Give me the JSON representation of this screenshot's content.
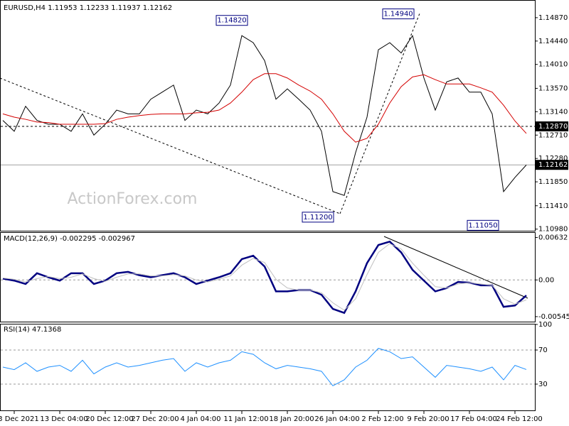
{
  "chart_data": [
    {
      "type": "line",
      "title": "EURUSD,H4  1.11953 1.12233 1.11937 1.12162",
      "watermark": "ActionForex.com",
      "categories": [
        null,
        "3 Dec 2021",
        null,
        null,
        null,
        "13 Dec 04:00",
        null,
        null,
        null,
        "20 Dec 12:00",
        null,
        null,
        null,
        "27 Dec 20:00",
        null,
        null,
        null,
        "4 Jan 04:00",
        null,
        null,
        null,
        "11 Jan 12:00",
        null,
        null,
        null,
        "18 Jan 20:00",
        null,
        null,
        null,
        "26 Jan 04:00",
        null,
        null,
        null,
        "2 Feb 12:00",
        null,
        null,
        null,
        "9 Feb 20:00",
        null,
        null,
        null,
        "17 Feb 04:00",
        null,
        null,
        null,
        "24 Feb 12:00",
        null
      ],
      "series": [
        {
          "color": "#000000",
          "values": [
            1.1298,
            1.1278,
            1.1324,
            1.1298,
            1.1291,
            1.1291,
            1.1278,
            1.131,
            1.1271,
            1.1291,
            1.1317,
            1.131,
            1.131,
            1.1337,
            1.135,
            1.1363,
            1.1298,
            1.1317,
            1.131,
            1.133,
            1.1363,
            1.1454,
            1.1441,
            1.1408,
            1.1337,
            1.1356,
            1.1337,
            1.1317,
            1.1278,
            1.1167,
            1.116,
            1.1239,
            1.1304,
            1.1428,
            1.1441,
            1.1422,
            1.1454,
            1.1376,
            1.1317,
            1.1369,
            1.1376,
            1.135,
            1.135,
            1.131,
            1.1167,
            1.1193,
            1.1216
          ]
        },
        {
          "color": "#d40000",
          "values": [
            1.131,
            1.1304,
            1.13,
            1.1295,
            1.1294,
            1.1291,
            1.1291,
            1.1291,
            1.1291,
            1.1292,
            1.13,
            1.1304,
            1.1307,
            1.1309,
            1.131,
            1.131,
            1.131,
            1.1312,
            1.1313,
            1.1317,
            1.133,
            1.135,
            1.1373,
            1.1384,
            1.1384,
            1.1376,
            1.1363,
            1.1352,
            1.1337,
            1.131,
            1.1278,
            1.1258,
            1.1265,
            1.1291,
            1.133,
            1.136,
            1.1378,
            1.1382,
            1.1373,
            1.1365,
            1.1365,
            1.1365,
            1.1358,
            1.135,
            1.1326,
            1.1297,
            1.1274
          ]
        }
      ],
      "ylim": [
        1.1095,
        1.1513
      ],
      "yticks": [
        {
          "value": 1.1487,
          "label": "1.14870"
        },
        {
          "value": 1.1444,
          "label": "1.14440"
        },
        {
          "value": 1.1401,
          "label": "1.14010"
        },
        {
          "value": 1.1357,
          "label": "1.13570"
        },
        {
          "value": 1.1314,
          "label": "1.13140"
        },
        {
          "value": 1.1271,
          "label": "1.12710"
        },
        {
          "value": 1.1228,
          "label": "1.12280"
        },
        {
          "value": 1.1185,
          "label": "1.11850"
        },
        {
          "value": 1.1141,
          "label": "1.11410"
        },
        {
          "value": 1.1098,
          "label": "1.10980"
        }
      ],
      "grid": false,
      "level": {
        "value": 1.1287,
        "label": "1.12870"
      },
      "current_price": 1.12162,
      "annotations": [
        {
          "value": 1.1482,
          "label": "1.14820"
        },
        {
          "value": 1.1494,
          "label": "1.14940"
        },
        {
          "value": 1.112,
          "label": "1.11200"
        },
        {
          "value": 1.1105,
          "label": "1.11050"
        }
      ]
    },
    {
      "type": "line",
      "title": "MACD(12,26,9) -0.002295 -0.002967",
      "series": [
        {
          "color": "#000080",
          "values": [
            0.0002,
            -0.0001,
            -0.0006,
            0.001,
            0.0004,
            -0.0001,
            0.001,
            0.001,
            -0.0006,
            -0.0001,
            0.001,
            0.0012,
            0.0007,
            0.0004,
            0.0007,
            0.001,
            0.0004,
            -0.0006,
            -0.0001,
            0.0004,
            0.001,
            0.0031,
            0.0036,
            0.002,
            -0.0017,
            -0.0017,
            -0.0015,
            -0.0015,
            -0.0022,
            -0.0043,
            -0.0049,
            -0.0017,
            0.0025,
            0.0052,
            0.0057,
            0.0041,
            0.0015,
            -0.0001,
            -0.0017,
            -0.0012,
            -0.0003,
            -0.0004,
            -0.0008,
            -0.0008,
            -0.004,
            -0.0038,
            -0.002295
          ]
        },
        {
          "color": "#c0c0c0",
          "values": [
            0.0003,
            0.0001,
            -0.0003,
            0.0002,
            0.0005,
            0.0002,
            0.0004,
            0.0009,
            0.0002,
            -0.0002,
            0.0004,
            0.0009,
            0.0009,
            0.0006,
            0.0006,
            0.0008,
            0.0006,
            0.0,
            -0.0003,
            0.0001,
            0.0006,
            0.0022,
            0.0032,
            0.0026,
            0.0001,
            -0.0012,
            -0.0015,
            -0.0015,
            -0.0019,
            -0.0034,
            -0.0045,
            -0.0028,
            0.0008,
            0.0041,
            0.0054,
            0.0046,
            0.0025,
            0.0007,
            -0.001,
            -0.0012,
            -0.0006,
            -0.0004,
            -0.0006,
            -0.0008,
            -0.0028,
            -0.0036,
            -0.002967
          ]
        }
      ],
      "ylim": [
        -0.0062,
        0.007
      ],
      "yticks": [
        0.00632,
        {
          "value": 0,
          "label": "0.00"
        },
        -0.005455
      ],
      "grid": true
    },
    {
      "type": "line",
      "title": "RSI(14) 47.1368",
      "series": [
        {
          "color": "#1e90ff",
          "values": [
            50,
            47,
            55,
            45,
            50,
            52,
            45,
            58,
            42,
            50,
            55,
            50,
            52,
            55,
            58,
            60,
            45,
            55,
            50,
            55,
            58,
            68,
            65,
            55,
            48,
            52,
            50,
            48,
            45,
            28,
            35,
            50,
            58,
            72,
            68,
            60,
            62,
            50,
            38,
            52,
            50,
            48,
            45,
            50,
            35,
            52,
            47.1368
          ]
        }
      ],
      "ylim": [
        0,
        100
      ],
      "yticks": [
        100,
        70,
        30
      ],
      "grid": true
    }
  ]
}
